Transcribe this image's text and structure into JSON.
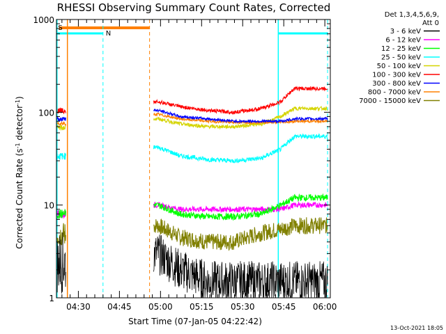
{
  "chart_data": {
    "type": "line",
    "title": "RHESSI Observing Summary Count Rates, Corrected",
    "xlabel": "Start Time (07-Jan-05 04:22:42)",
    "ylabel_main": "Corrected Count Rate (s",
    "ylabel_sup1": "-1",
    "ylabel_mid": " detector",
    "ylabel_sup2": "-1",
    "ylabel_end": ")",
    "ylim": [
      1,
      1000
    ],
    "yscale": "log",
    "ytick_labels": [
      "1",
      "10",
      "100",
      "1000"
    ],
    "ytick_values": [
      1,
      10,
      100,
      1000
    ],
    "xlim_minutes_after_0422": [
      0,
      100
    ],
    "xtick_labels": [
      "04:30",
      "04:45",
      "05:00",
      "05:15",
      "05:30",
      "05:45",
      "06:00"
    ],
    "xtick_minutes_after_0422": [
      8,
      23,
      38,
      53,
      68,
      83,
      98
    ],
    "legend_position": "right, outside plot",
    "legend_header": [
      "Det 1,3,4,5,6,9,",
      "Att 0"
    ],
    "legend": [
      {
        "label": "3 - 6 keV",
        "color": "#000000"
      },
      {
        "label": "6 - 12 keV",
        "color": "#ff00ff"
      },
      {
        "label": "12 - 25 keV",
        "color": "#00ff00"
      },
      {
        "label": "25 - 50 keV",
        "color": "#00ffff"
      },
      {
        "label": "50 - 100 keV",
        "color": "#d4d400"
      },
      {
        "label": "100 - 300 keV",
        "color": "#ff0000"
      },
      {
        "label": "300 - 800 keV",
        "color": "#0000ff"
      },
      {
        "label": "800 - 7000 keV",
        "color": "#ff8000"
      },
      {
        "label": "7000 - 15000 keV",
        "color": "#808000"
      }
    ],
    "flag_labels": [
      {
        "text": "S",
        "color": "#ff8000"
      },
      {
        "text": "N",
        "color": "#00ffff"
      }
    ],
    "series_levels_count_rate": {
      "3 - 6 keV": [
        3,
        2,
        1.5,
        1.5,
        1.5,
        1.5,
        1.5
      ],
      "6 - 12 keV": [
        10,
        9,
        9,
        9,
        9,
        9,
        10
      ],
      "12 - 25 keV": [
        10,
        8,
        7.5,
        7.5,
        8,
        10,
        12
      ],
      "25 - 50 keV": [
        42,
        34,
        31,
        30,
        32,
        40,
        55
      ],
      "50 - 100 keV": [
        85,
        75,
        70,
        70,
        75,
        90,
        110
      ],
      "100 - 300 keV": [
        130,
        115,
        105,
        100,
        110,
        130,
        180
      ],
      "300 - 800 keV": [
        105,
        90,
        85,
        80,
        80,
        80,
        85
      ],
      "800 - 7000 keV": [
        95,
        85,
        80,
        78,
        78,
        78,
        80
      ],
      "7000 - 15000 keV": [
        6,
        4.5,
        4,
        4,
        5,
        5.5,
        6
      ]
    },
    "series_level_times_minutes_after_0422": [
      37,
      45,
      55,
      65,
      75,
      82,
      87
    ],
    "footer_date": "13-Oct-2021 18:05"
  }
}
